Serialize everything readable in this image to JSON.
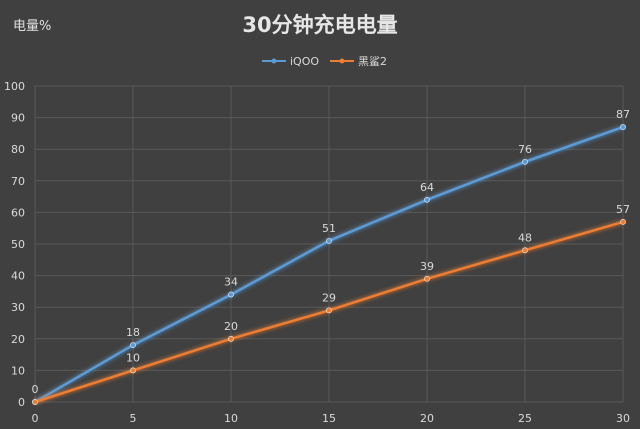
{
  "chart_data": {
    "type": "line",
    "title": "30分钟充电电量",
    "ylabel": "电量%",
    "xlabel": "",
    "x": [
      0,
      5,
      10,
      15,
      20,
      25,
      30
    ],
    "xlim": [
      0,
      30
    ],
    "ylim": [
      0,
      100
    ],
    "y_ticks": [
      0,
      10,
      20,
      30,
      40,
      50,
      60,
      70,
      80,
      90,
      100
    ],
    "x_ticks": [
      0,
      5,
      10,
      15,
      20,
      25,
      30
    ],
    "grid": true,
    "legend_position": "top-center",
    "series": [
      {
        "name": "iQOO",
        "color": "#5b9bd5",
        "values": [
          0,
          18,
          34,
          51,
          64,
          76,
          87
        ],
        "labels": [
          "0",
          "18",
          "34",
          "51",
          "64",
          "76",
          "87"
        ]
      },
      {
        "name": "黑鲨2",
        "color": "#ed7d31",
        "values": [
          0,
          10,
          20,
          29,
          39,
          48,
          57
        ],
        "labels": [
          "",
          "10",
          "20",
          "29",
          "39",
          "48",
          "57"
        ]
      }
    ],
    "colors": {
      "background": "#404040",
      "grid": "#595959",
      "text": "#d9d9d9",
      "title": "#e6e6e6"
    }
  }
}
